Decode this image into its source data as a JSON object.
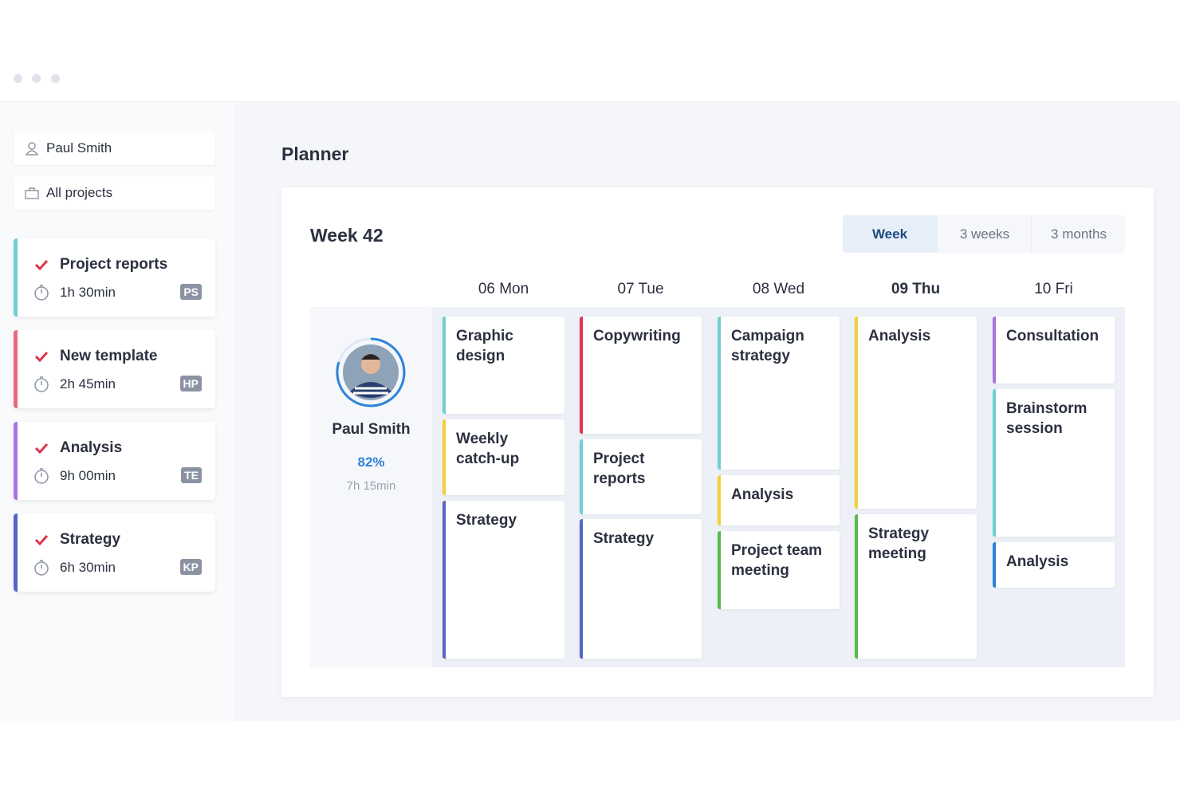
{
  "filters": [
    "Paul Smith",
    "All projects"
  ],
  "tasks": [
    {
      "title": "Project reports",
      "time": "1h 30min",
      "initials": "PS"
    },
    {
      "title": "New template",
      "time": "2h 45min",
      "initials": "HP"
    },
    {
      "title": "Analysis",
      "time": "9h 00min",
      "initials": "TE"
    },
    {
      "title": "Strategy",
      "time": "6h 30min",
      "initials": "KP"
    }
  ],
  "page_title": "Planner",
  "week_title": "Week 42",
  "tabs": [
    "Week",
    "3 weeks",
    "3 months"
  ],
  "person": {
    "name": "Paul Smith",
    "percent": "82%",
    "time": "7h 15min"
  },
  "days": [
    {
      "label": "06 Mon",
      "events": [
        "Graphic design",
        "Weekly catch-up",
        "Strategy"
      ]
    },
    {
      "label": "07 Tue",
      "events": [
        "Copywriting",
        "Project reports",
        "Strategy"
      ]
    },
    {
      "label": "08 Wed",
      "events": [
        "Campaign strategy",
        "Analysis",
        "Project team meeting"
      ]
    },
    {
      "label": "09 Thu",
      "events": [
        "Analysis",
        "Strategy meeting"
      ]
    },
    {
      "label": "10 Fri",
      "events": [
        "Consultation",
        "Brainstorm session",
        "Analysis"
      ]
    }
  ]
}
